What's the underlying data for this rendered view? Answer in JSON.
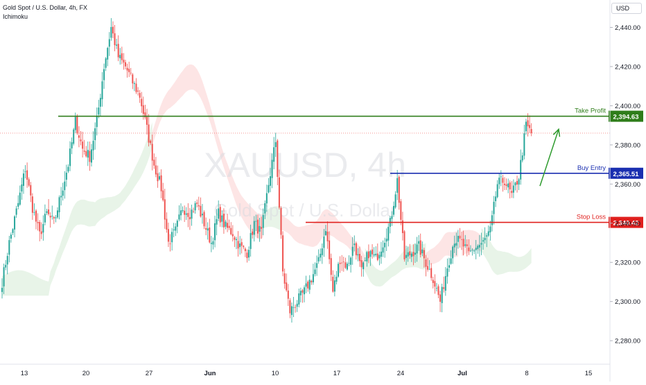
{
  "header": {
    "title": "Gold Spot / U.S. Dollar, 4h, FX",
    "indicator": "Ichimoku"
  },
  "currency": "USD",
  "watermark": {
    "symbol": "XAUUSD, 4h",
    "description": "Gold Spot / U.S. Dollar"
  },
  "colors": {
    "up": "#26a69a",
    "down": "#ef5350",
    "take_profit": "#2e7d1a",
    "buy_entry": "#1a2fb0",
    "stop_loss": "#e0201e",
    "last_price_line": "#ef5350",
    "cloud_bull": "#e6f3e6",
    "cloud_bear": "#fde2e2",
    "arrow": "#2e9b2e",
    "axis_text": "#131722"
  },
  "chart_data": {
    "type": "candlestick",
    "y_axis": {
      "min": 2268,
      "max": 2454,
      "ticks": [
        2280,
        2300,
        2320,
        2340,
        2360,
        2380,
        2400,
        2420,
        2440
      ],
      "tick_labels": [
        "2,280.00",
        "2,300.00",
        "2,320.00",
        "2,340.00",
        "2,360.00",
        "2,380.00",
        "2,400.00",
        "2,420.00",
        "2,440.00"
      ]
    },
    "x_axis": {
      "labels": [
        "13",
        "20",
        "27",
        "Jun",
        "10",
        "17",
        "24",
        "Jul",
        "8",
        "15"
      ],
      "bold_labels": [
        "Jun",
        "Jul"
      ]
    },
    "levels": [
      {
        "name": "Take Profit",
        "value": 2394.63,
        "label": "2,394.63"
      },
      {
        "name": "Buy Entry",
        "value": 2365.51,
        "label": "2,365.51"
      },
      {
        "name": "Stop Loss",
        "value": 2340.42,
        "label": "2,340.42"
      }
    ],
    "last_price": 2386.0,
    "path_anchors": [
      [
        0,
        2310
      ],
      [
        4,
        2330
      ],
      [
        9,
        2350
      ],
      [
        13,
        2368
      ],
      [
        17,
        2348
      ],
      [
        21,
        2334
      ],
      [
        25,
        2345
      ],
      [
        29,
        2340
      ],
      [
        33,
        2355
      ],
      [
        37,
        2370
      ],
      [
        41,
        2392
      ],
      [
        45,
        2378
      ],
      [
        49,
        2374
      ],
      [
        53,
        2392
      ],
      [
        57,
        2420
      ],
      [
        61,
        2440
      ],
      [
        65,
        2425
      ],
      [
        69,
        2420
      ],
      [
        73,
        2412
      ],
      [
        77,
        2405
      ],
      [
        81,
        2388
      ],
      [
        85,
        2370
      ],
      [
        89,
        2358
      ],
      [
        93,
        2330
      ],
      [
        97,
        2336
      ],
      [
        101,
        2348
      ],
      [
        105,
        2345
      ],
      [
        109,
        2350
      ],
      [
        113,
        2340
      ],
      [
        117,
        2330
      ],
      [
        121,
        2345
      ],
      [
        125,
        2338
      ],
      [
        129,
        2335
      ],
      [
        133,
        2328
      ],
      [
        137,
        2325
      ],
      [
        141,
        2340
      ],
      [
        145,
        2335
      ],
      [
        149,
        2360
      ],
      [
        153,
        2382
      ],
      [
        157,
        2315
      ],
      [
        161,
        2295
      ],
      [
        165,
        2300
      ],
      [
        169,
        2305
      ],
      [
        173,
        2312
      ],
      [
        177,
        2320
      ],
      [
        181,
        2338
      ],
      [
        185,
        2305
      ],
      [
        189,
        2322
      ],
      [
        193,
        2318
      ],
      [
        197,
        2330
      ],
      [
        201,
        2315
      ],
      [
        205,
        2325
      ],
      [
        209,
        2322
      ],
      [
        213,
        2330
      ],
      [
        217,
        2340
      ],
      [
        221,
        2362
      ],
      [
        225,
        2322
      ],
      [
        229,
        2325
      ],
      [
        233,
        2328
      ],
      [
        237,
        2320
      ],
      [
        241,
        2312
      ],
      [
        245,
        2300
      ],
      [
        249,
        2318
      ],
      [
        253,
        2332
      ],
      [
        257,
        2330
      ],
      [
        261,
        2324
      ],
      [
        265,
        2328
      ],
      [
        269,
        2330
      ],
      [
        273,
        2336
      ],
      [
        277,
        2360
      ],
      [
        281,
        2362
      ],
      [
        285,
        2354
      ],
      [
        289,
        2364
      ],
      [
        293,
        2390
      ],
      [
        296,
        2386
      ]
    ]
  }
}
